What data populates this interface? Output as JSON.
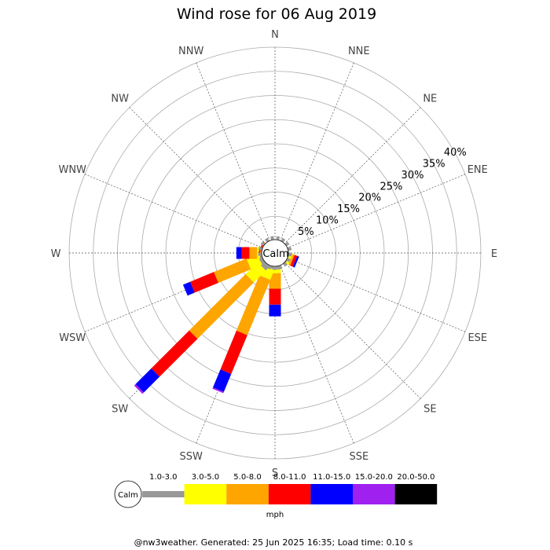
{
  "chart_data": {
    "type": "wind-rose",
    "title": "Wind rose for 06 Aug 2019",
    "directions": [
      "N",
      "NNE",
      "NE",
      "ENE",
      "E",
      "ESE",
      "SE",
      "SSE",
      "S",
      "SSW",
      "SW",
      "WSW",
      "W",
      "WNW",
      "NW",
      "NNW"
    ],
    "radial_ticks": [
      5,
      10,
      15,
      20,
      25,
      30,
      35,
      40
    ],
    "radial_tick_labels": [
      "5%",
      "10%",
      "15%",
      "20%",
      "25%",
      "30%",
      "35%",
      "40%"
    ],
    "radial_max": 40,
    "calm_label": "Calm",
    "grid": true,
    "speed_bins": [
      {
        "label": "1.0-3.0",
        "color": "#999999"
      },
      {
        "label": "3.0-5.0",
        "color": "#ffff00"
      },
      {
        "label": "5.0-8.0",
        "color": "#ffa500"
      },
      {
        "label": "8.0-11.0",
        "color": "#ff0000"
      },
      {
        "label": "11.0-15.0",
        "color": "#0000ff"
      },
      {
        "label": "15.0-20.0",
        "color": "#a020f0"
      },
      {
        "label": "20.0-50.0",
        "color": "#000000"
      }
    ],
    "units": "mph",
    "series": [
      {
        "direction": "N",
        "values": [
          0,
          0,
          0,
          0,
          0,
          0,
          0
        ]
      },
      {
        "direction": "NNE",
        "values": [
          0,
          0,
          0,
          0,
          0,
          0,
          0
        ]
      },
      {
        "direction": "NE",
        "values": [
          0,
          0,
          0,
          0,
          0,
          0,
          0
        ]
      },
      {
        "direction": "ENE",
        "values": [
          0,
          0,
          0,
          0,
          0,
          0,
          0
        ]
      },
      {
        "direction": "E",
        "values": [
          0.3,
          0,
          0,
          0,
          0,
          0,
          0
        ]
      },
      {
        "direction": "ESE",
        "values": [
          0.3,
          0.6,
          0.4,
          0.6,
          0.4,
          0,
          0
        ]
      },
      {
        "direction": "SE",
        "values": [
          0,
          0,
          0,
          0,
          0,
          0,
          0
        ]
      },
      {
        "direction": "SSE",
        "values": [
          0,
          0,
          0,
          0,
          0,
          0,
          0
        ]
      },
      {
        "direction": "S",
        "values": [
          0.8,
          0.8,
          3.2,
          3.3,
          2.4,
          0,
          0
        ]
      },
      {
        "direction": "SSW",
        "values": [
          0.7,
          2.2,
          12.4,
          8.7,
          4.0,
          0.3,
          0
        ]
      },
      {
        "direction": "SW",
        "values": [
          1.3,
          3.5,
          16.5,
          11.1,
          4.6,
          0.4,
          0
        ]
      },
      {
        "direction": "WSW",
        "values": [
          0.8,
          2.5,
          7.3,
          5.3,
          1.6,
          0,
          0
        ]
      },
      {
        "direction": "W",
        "values": [
          0.5,
          0.6,
          1.6,
          1.6,
          1.1,
          0,
          0
        ]
      },
      {
        "direction": "WNW",
        "values": [
          0,
          0,
          0.3,
          0.3,
          0,
          0,
          0
        ]
      },
      {
        "direction": "NW",
        "values": [
          0,
          0,
          0,
          0,
          0,
          0,
          0
        ]
      },
      {
        "direction": "NNW",
        "values": [
          0,
          0,
          0,
          0,
          0,
          0,
          0
        ]
      }
    ]
  },
  "footer": "@nw3weather. Generated: 25 Jun 2025 16:35; Load time: 0.10 s"
}
